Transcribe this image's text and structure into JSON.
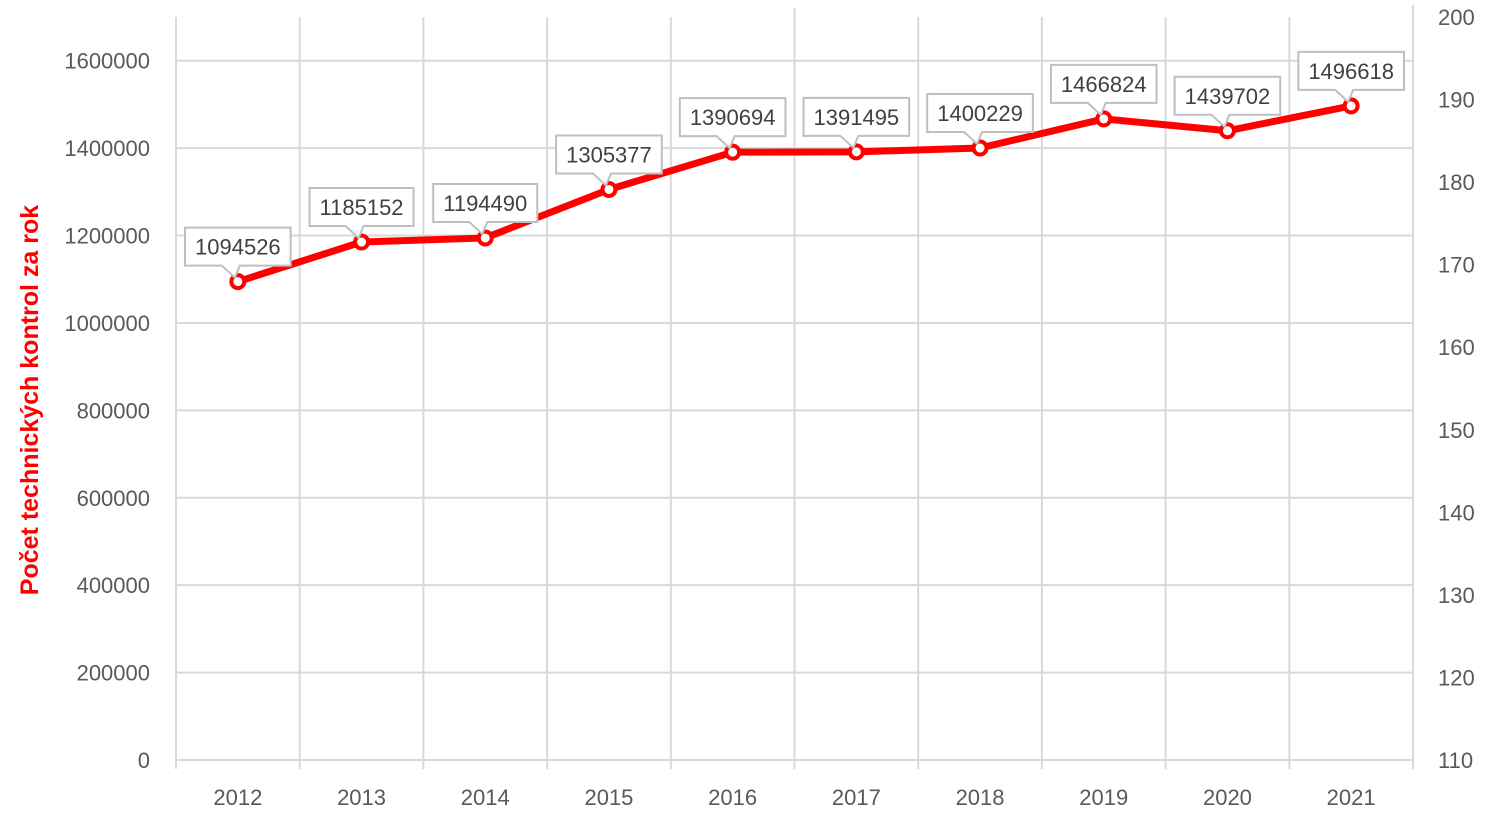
{
  "chart_data": {
    "type": "line",
    "categories": [
      "2012",
      "2013",
      "2014",
      "2015",
      "2016",
      "2017",
      "2018",
      "2019",
      "2020",
      "2021"
    ],
    "series": [
      {
        "values": [
          1094526,
          1185152,
          1194490,
          1305377,
          1390694,
          1391495,
          1400229,
          1466824,
          1439702,
          1496618
        ],
        "color": "#ff0000",
        "data_labels": [
          "1094526",
          "1185152",
          "1194490",
          "1305377",
          "1390694",
          "1391495",
          "1400229",
          "1466824",
          "1439702",
          "1496618"
        ]
      }
    ],
    "ylabel": "Počet technických kontrol za rok",
    "ylim": [
      0,
      1700000
    ],
    "yticks": [
      "0",
      "200000",
      "400000",
      "600000",
      "800000",
      "1000000",
      "1200000",
      "1400000",
      "1600000"
    ],
    "y2lim": [
      110,
      200
    ],
    "y2ticks": [
      "110",
      "120",
      "130",
      "140",
      "150",
      "160",
      "170",
      "180",
      "190",
      "200"
    ],
    "grid": true,
    "legend": "none",
    "colors": {
      "line": "#ff0000",
      "ylabel": "#ff0000",
      "grid": "#d9d9d9",
      "ticks": "#595959"
    }
  }
}
